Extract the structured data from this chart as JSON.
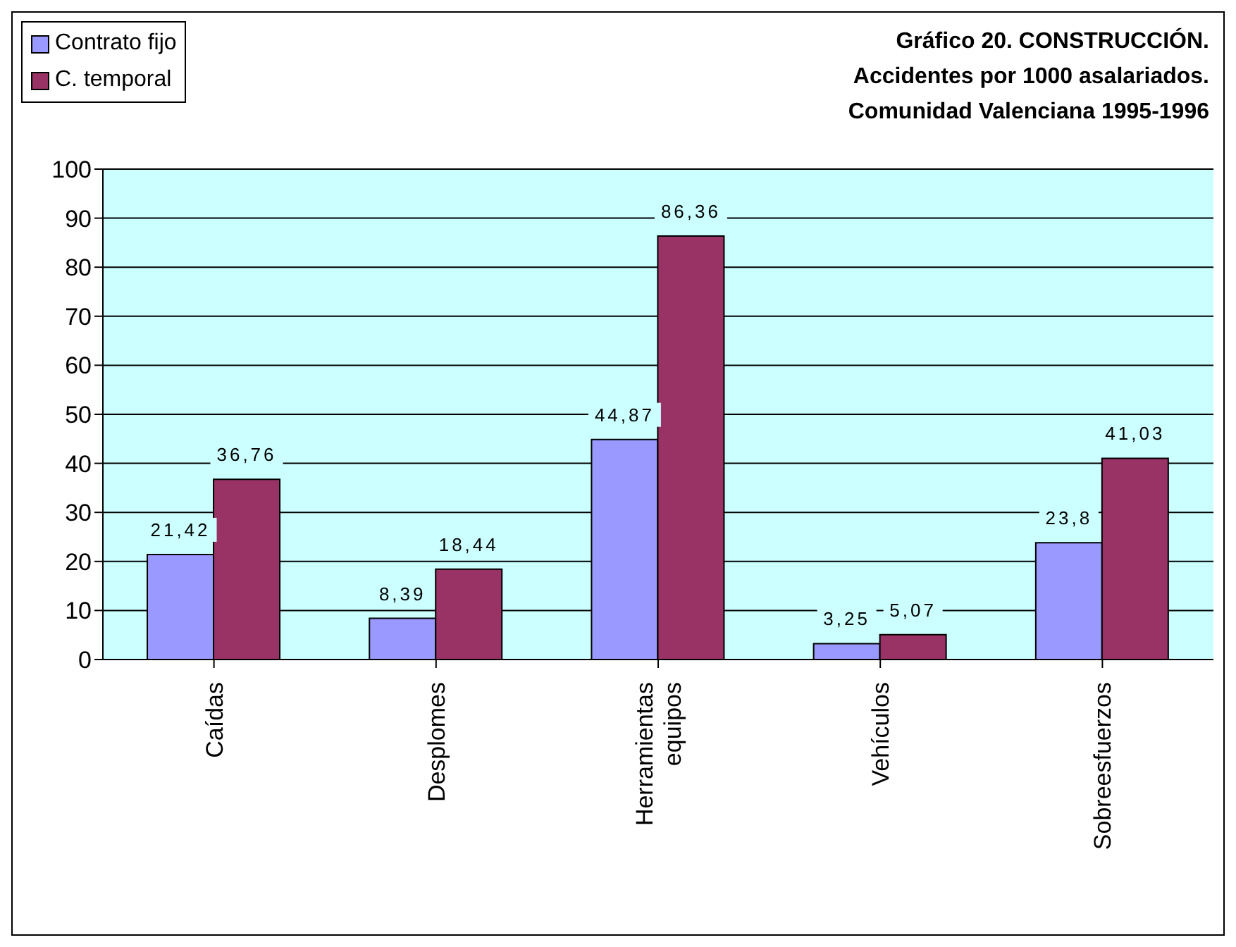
{
  "chart_data": {
    "type": "bar",
    "title": "Gráfico 20. CONSTRUCCIÓN.\nAccidentes por 1000 asalariados.\nComunidad Valenciana 1995-1996",
    "categories": [
      "Caídas",
      "Desplomes",
      "Herramientas equipos",
      "Vehículos",
      "Sobreesfuerzos"
    ],
    "series": [
      {
        "name": "Contrato fijo",
        "color": "#9999ff",
        "values": [
          21.42,
          8.39,
          44.87,
          3.25,
          23.8
        ],
        "value_labels": [
          "21,42",
          "8,39",
          "44,87",
          "3,25",
          "23,8"
        ]
      },
      {
        "name": "C. temporal",
        "color": "#993366",
        "values": [
          36.76,
          18.44,
          86.36,
          5.07,
          41.03
        ],
        "value_labels": [
          "36,76",
          "18,44",
          "86,36",
          "5,07",
          "41,03"
        ]
      }
    ],
    "ylim": [
      0,
      100
    ],
    "yticks": [
      0,
      10,
      20,
      30,
      40,
      50,
      60,
      70,
      80,
      90,
      100
    ],
    "grid": "y",
    "legend": "top left"
  }
}
